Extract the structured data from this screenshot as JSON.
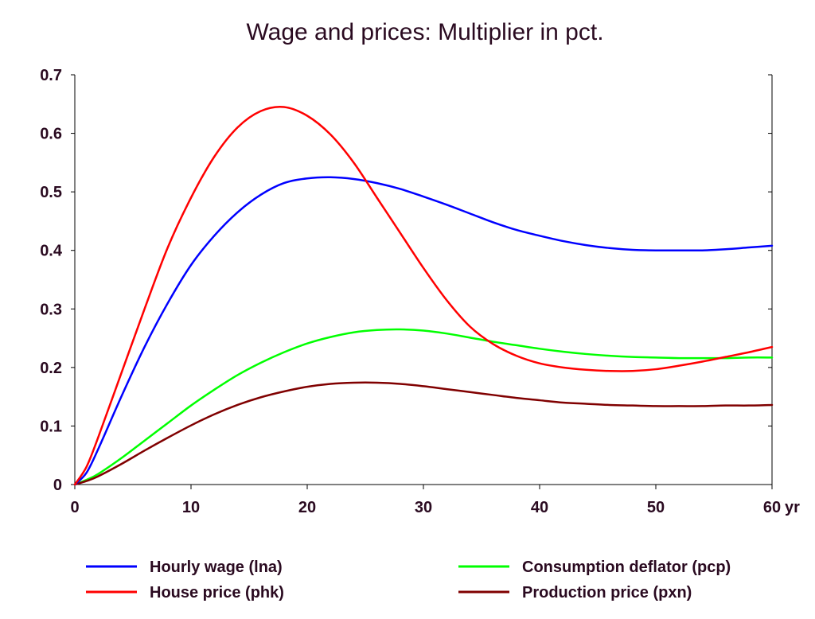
{
  "chart_data": {
    "type": "line",
    "title": "Wage and prices: Multiplier in pct.",
    "xlabel": "",
    "ylabel": "",
    "x_unit_label": "yr",
    "xlim": [
      0,
      60
    ],
    "ylim": [
      0,
      0.7
    ],
    "x_ticks": [
      0,
      10,
      20,
      30,
      40,
      50,
      60
    ],
    "x_tick_labels": [
      "0",
      "10",
      "20",
      "30",
      "40",
      "50",
      "60"
    ],
    "y_ticks": [
      0,
      0.1,
      0.2,
      0.3,
      0.4,
      0.5,
      0.6,
      0.7
    ],
    "y_tick_labels": [
      "0",
      "0.1",
      "0.2",
      "0.3",
      "0.4",
      "0.5",
      "0.6",
      "0.7"
    ],
    "grid": false,
    "legend_position": "bottom",
    "x": [
      0,
      1,
      2,
      4,
      6,
      8,
      10,
      12,
      14,
      16,
      18,
      20,
      22,
      24,
      26,
      28,
      30,
      32,
      34,
      36,
      38,
      40,
      42,
      44,
      46,
      48,
      50,
      52,
      54,
      56,
      58,
      60
    ],
    "series": [
      {
        "name": "Hourly wage (lna)",
        "color": "#0000ff",
        "values": [
          0,
          0.02,
          0.06,
          0.15,
          0.235,
          0.31,
          0.375,
          0.425,
          0.465,
          0.495,
          0.515,
          0.523,
          0.525,
          0.522,
          0.515,
          0.505,
          0.492,
          0.478,
          0.463,
          0.448,
          0.435,
          0.425,
          0.416,
          0.409,
          0.404,
          0.401,
          0.4,
          0.4,
          0.4,
          0.402,
          0.405,
          0.408
        ]
      },
      {
        "name": "House price (phk)",
        "color": "#ff0000",
        "values": [
          0,
          0.03,
          0.08,
          0.19,
          0.3,
          0.405,
          0.49,
          0.56,
          0.61,
          0.638,
          0.645,
          0.63,
          0.598,
          0.55,
          0.49,
          0.43,
          0.37,
          0.315,
          0.27,
          0.24,
          0.22,
          0.207,
          0.2,
          0.196,
          0.194,
          0.194,
          0.197,
          0.203,
          0.21,
          0.218,
          0.226,
          0.235
        ]
      },
      {
        "name": "Consumption deflator (pcp)",
        "color": "#00ff00",
        "values": [
          0,
          0.008,
          0.018,
          0.045,
          0.075,
          0.105,
          0.135,
          0.162,
          0.187,
          0.208,
          0.226,
          0.241,
          0.252,
          0.26,
          0.264,
          0.265,
          0.263,
          0.258,
          0.251,
          0.244,
          0.238,
          0.232,
          0.227,
          0.223,
          0.22,
          0.218,
          0.217,
          0.216,
          0.216,
          0.216,
          0.217,
          0.217
        ]
      },
      {
        "name": "Production price (pxn)",
        "color": "#800000",
        "values": [
          0,
          0.006,
          0.014,
          0.035,
          0.058,
          0.08,
          0.101,
          0.12,
          0.136,
          0.149,
          0.159,
          0.167,
          0.172,
          0.174,
          0.174,
          0.172,
          0.168,
          0.163,
          0.158,
          0.153,
          0.148,
          0.144,
          0.14,
          0.138,
          0.136,
          0.135,
          0.134,
          0.134,
          0.134,
          0.135,
          0.135,
          0.136
        ]
      }
    ]
  }
}
